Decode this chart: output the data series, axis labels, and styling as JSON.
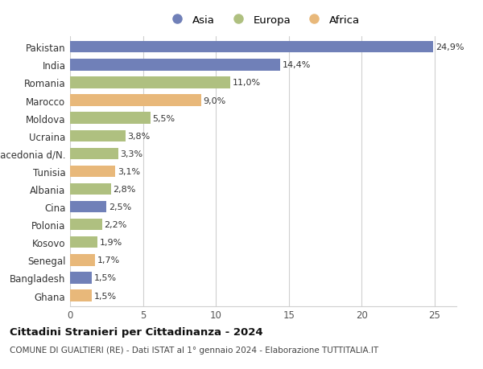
{
  "categories": [
    "Pakistan",
    "India",
    "Romania",
    "Marocco",
    "Moldova",
    "Ucraina",
    "Macedonia d/N.",
    "Tunisia",
    "Albania",
    "Cina",
    "Polonia",
    "Kosovo",
    "Senegal",
    "Bangladesh",
    "Ghana"
  ],
  "values": [
    24.9,
    14.4,
    11.0,
    9.0,
    5.5,
    3.8,
    3.3,
    3.1,
    2.8,
    2.5,
    2.2,
    1.9,
    1.7,
    1.5,
    1.5
  ],
  "labels": [
    "24,9%",
    "14,4%",
    "11,0%",
    "9,0%",
    "5,5%",
    "3,8%",
    "3,3%",
    "3,1%",
    "2,8%",
    "2,5%",
    "2,2%",
    "1,9%",
    "1,7%",
    "1,5%",
    "1,5%"
  ],
  "continents": [
    "Asia",
    "Asia",
    "Europa",
    "Africa",
    "Europa",
    "Europa",
    "Europa",
    "Africa",
    "Europa",
    "Asia",
    "Europa",
    "Europa",
    "Africa",
    "Asia",
    "Africa"
  ],
  "colors": {
    "Asia": "#7080b8",
    "Europa": "#afc080",
    "Africa": "#e8b87a"
  },
  "legend_labels": [
    "Asia",
    "Europa",
    "Africa"
  ],
  "legend_colors": [
    "#7080b8",
    "#afc080",
    "#e8b87a"
  ],
  "title": "Cittadini Stranieri per Cittadinanza - 2024",
  "subtitle": "COMUNE DI GUALTIERI (RE) - Dati ISTAT al 1° gennaio 2024 - Elaborazione TUTTITALIA.IT",
  "xlim": [
    0,
    26.5
  ],
  "xticks": [
    0,
    5,
    10,
    15,
    20,
    25
  ],
  "background_color": "#ffffff",
  "bar_height": 0.65,
  "grid_color": "#d0d0d0"
}
